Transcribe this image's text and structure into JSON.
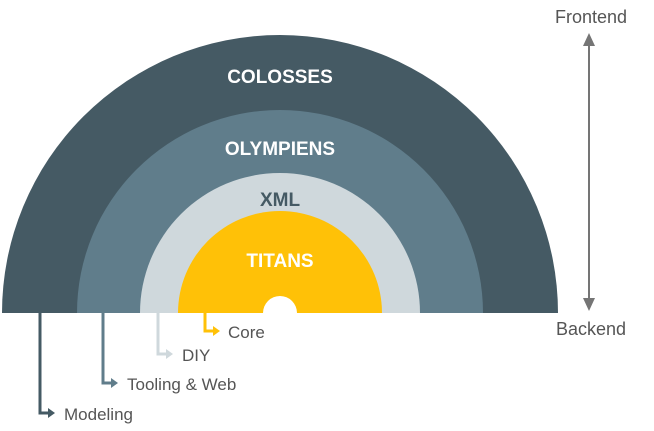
{
  "layers": [
    {
      "id": "colosses",
      "label": "COLOSSES",
      "fill": "#455a64",
      "text_color": "#ffffff"
    },
    {
      "id": "olympiens",
      "label": "OLYMPIENS",
      "fill": "#607d8b",
      "text_color": "#ffffff"
    },
    {
      "id": "xml",
      "label": "XML",
      "fill": "#cfd8dc",
      "text_color": "#455a64"
    },
    {
      "id": "titans",
      "label": "TITANS",
      "fill": "#ffc107",
      "text_color": "#ffffff"
    }
  ],
  "legend": [
    {
      "id": "core",
      "label": "Core",
      "color": "#ffc107"
    },
    {
      "id": "diy",
      "label": "DIY",
      "color": "#cfd8dc"
    },
    {
      "id": "tooling",
      "label": "Tooling & Web",
      "color": "#607d8b"
    },
    {
      "id": "modeling",
      "label": "Modeling",
      "color": "#455a64"
    }
  ],
  "axis": {
    "top_label": "Frontend",
    "bottom_label": "Backend",
    "color": "#757575"
  },
  "text_color": "#555555"
}
